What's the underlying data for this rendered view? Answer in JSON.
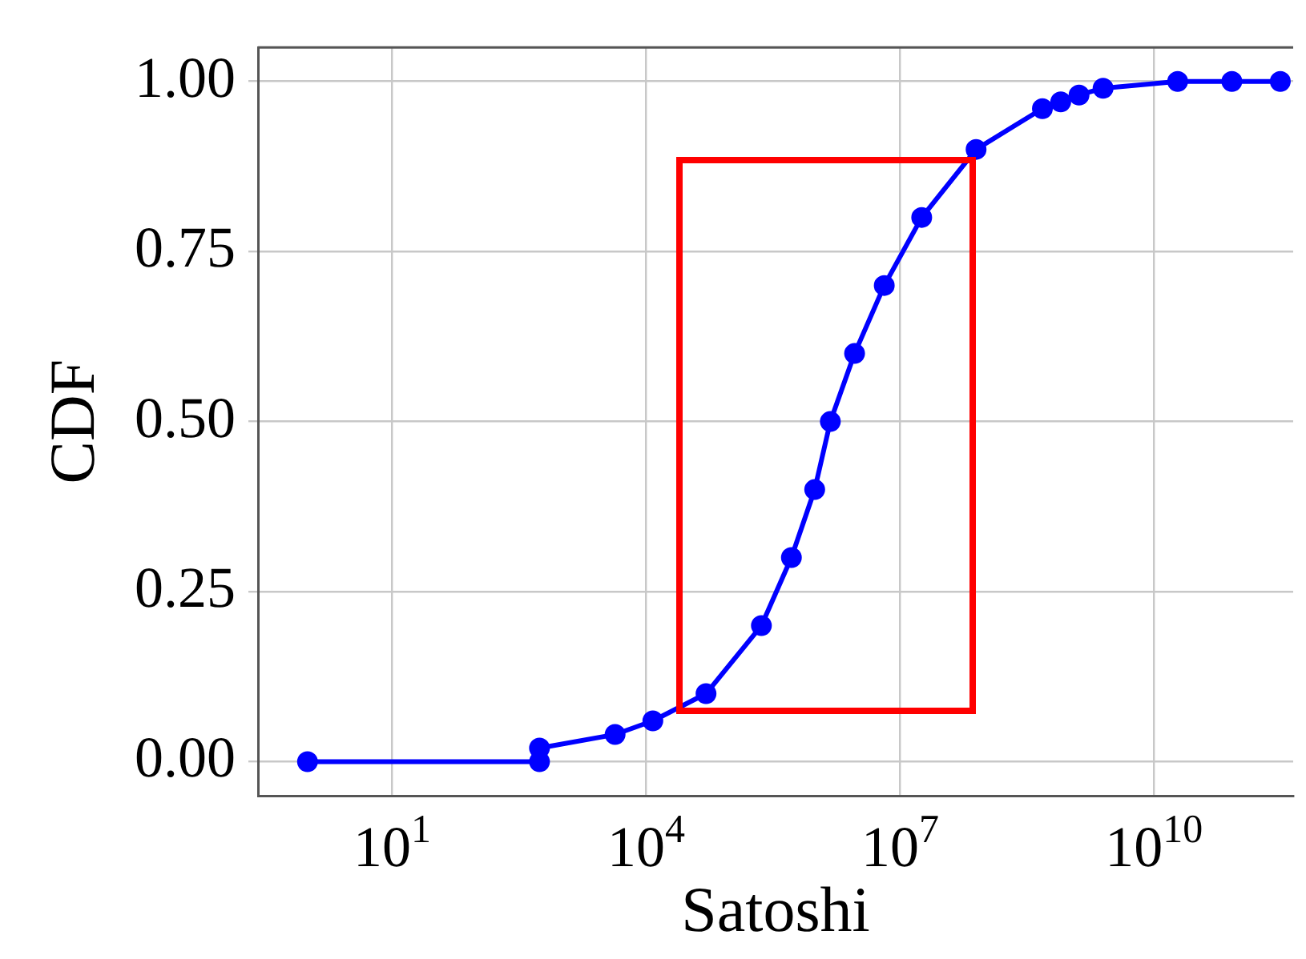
{
  "chart_data": {
    "type": "line",
    "xlabel": "Satoshi",
    "ylabel": "CDF",
    "x": [
      1,
      550,
      550,
      4300,
      12000,
      51000,
      230000,
      520000,
      980000,
      1500000,
      2900000,
      6500000,
      18000000,
      79000000,
      480000000,
      790000000,
      1300000000,
      2500000000,
      19000000000,
      83000000000,
      310000000000
    ],
    "series": [
      {
        "color": "#0000ff",
        "values": [
          0,
          0,
          0.02,
          0.04,
          0.06,
          0.1,
          0.2,
          0.3,
          0.4,
          0.5,
          0.6,
          0.7,
          0.8,
          0.9,
          0.96,
          0.97,
          0.98,
          0.99,
          1,
          1,
          1
        ]
      }
    ],
    "log": "x",
    "xlim": [
      0.26,
      440000000000
    ],
    "xticks": [
      {
        "value": 10,
        "label": "10$^{1}$"
      },
      {
        "value": 10000,
        "label": "10$^{4}$"
      },
      {
        "value": 10000000,
        "label": "10$^{7}$"
      },
      {
        "value": 10000000000,
        "label": "10$^{10}$"
      }
    ],
    "ylim": [
      -0.05,
      1.05
    ],
    "yticks": [
      {
        "value": 0,
        "label": "0.00"
      },
      {
        "value": 0.25,
        "label": "0.25"
      },
      {
        "value": 0.5,
        "label": "0.50"
      },
      {
        "value": 0.75,
        "label": "0.75"
      },
      {
        "value": 1,
        "label": "1.00"
      }
    ],
    "grid": true,
    "legend": false,
    "marker": "circle",
    "line_style": "solid"
  }
}
